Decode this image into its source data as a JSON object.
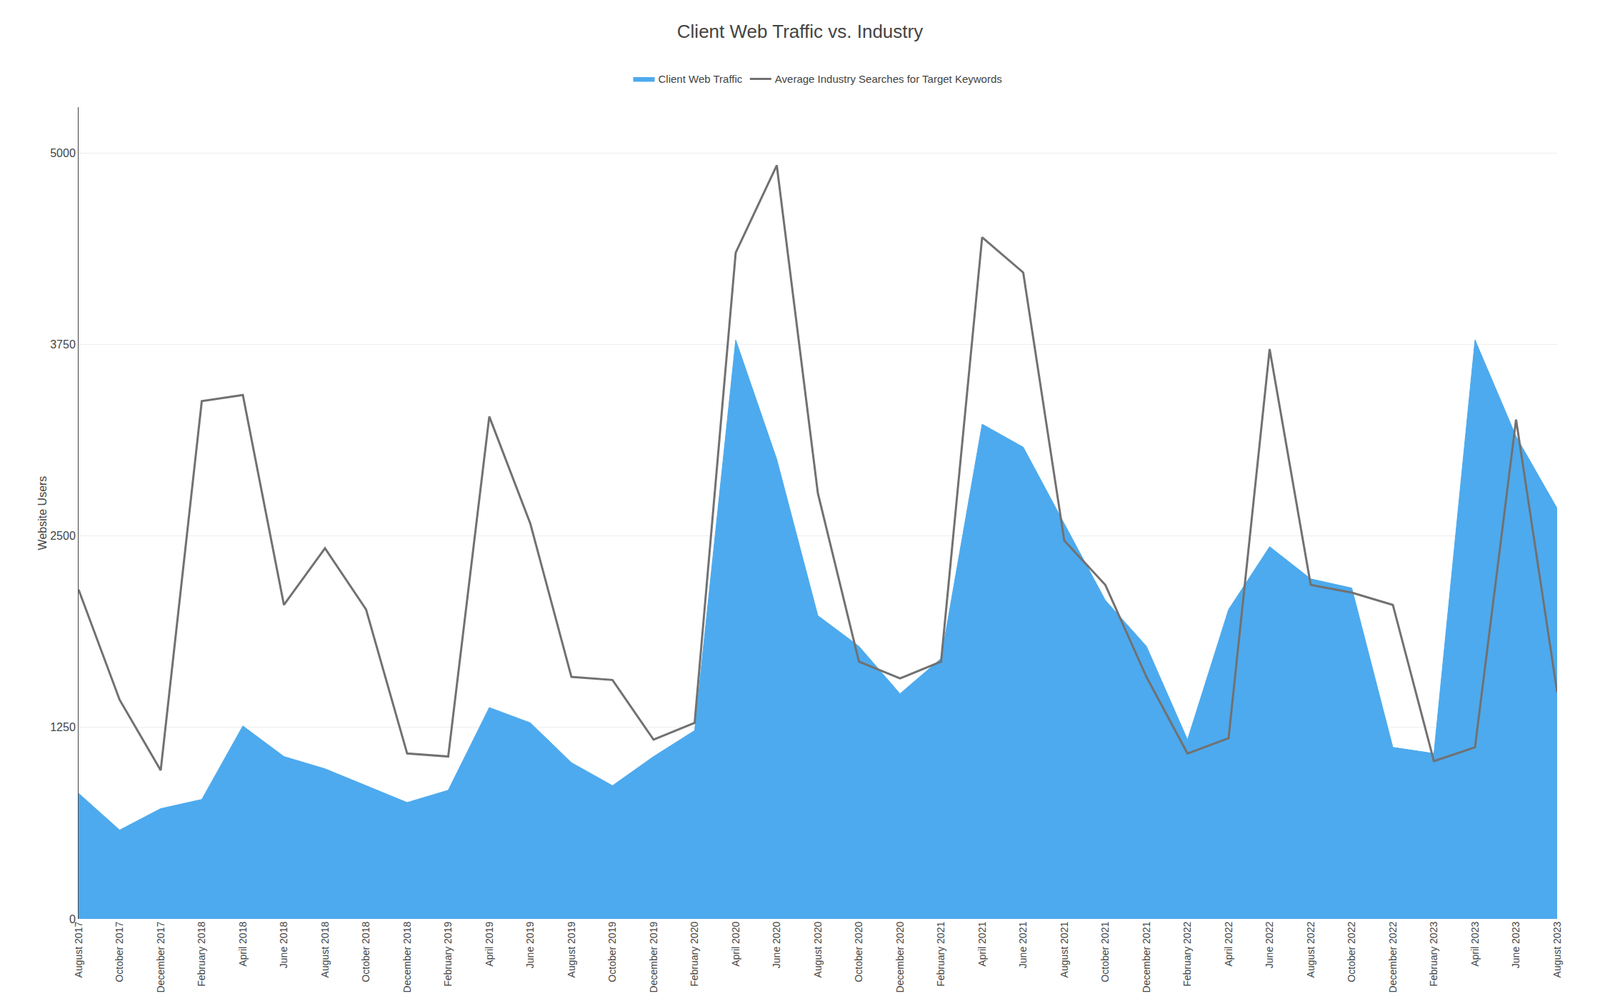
{
  "chart_data": {
    "type": "line",
    "title": "Client Web Traffic vs. Industry",
    "ylabel": "Website Users",
    "categories": [
      "August 2017",
      "October 2017",
      "December 2017",
      "February 2018",
      "April 2018",
      "June 2018",
      "August 2018",
      "October 2018",
      "December 2018",
      "February 2019",
      "April 2019",
      "June 2019",
      "August 2019",
      "October 2019",
      "December 2019",
      "February 2020",
      "April 2020",
      "June 2020",
      "August 2020",
      "October 2020",
      "December 2020",
      "February 2021",
      "April 2021",
      "June 2021",
      "August 2021",
      "October 2021",
      "December 2021",
      "February 2022",
      "April 2022",
      "June 2022",
      "August 2022",
      "October 2022",
      "December 2022",
      "February 2023",
      "April 2023",
      "June 2023",
      "August 2023"
    ],
    "series": [
      {
        "name": "Client Web Traffic",
        "type": "area",
        "color": "#4DAAEE",
        "values": [
          820,
          580,
          720,
          780,
          1260,
          1060,
          980,
          870,
          760,
          840,
          1380,
          1280,
          1020,
          870,
          1060,
          1230,
          3780,
          3000,
          1980,
          1780,
          1470,
          1700,
          3230,
          3080,
          2580,
          2080,
          1780,
          1170,
          2020,
          2430,
          2220,
          2160,
          1120,
          1080,
          3780,
          3150,
          2680
        ]
      },
      {
        "name": "Average Industry Searches for Target Keywords",
        "type": "line",
        "color": "#717171",
        "values": [
          2150,
          1430,
          970,
          3380,
          3420,
          2050,
          2420,
          2020,
          1080,
          1060,
          3280,
          2580,
          1580,
          1560,
          1170,
          1280,
          4350,
          4920,
          2780,
          1680,
          1570,
          1680,
          4450,
          4220,
          2470,
          2180,
          1580,
          1080,
          1180,
          3720,
          2180,
          2130,
          2050,
          1030,
          1120,
          3260,
          1480
        ]
      }
    ],
    "ylim": [
      0,
      5300
    ],
    "yticks": [
      0,
      1250,
      2500,
      3750,
      5000
    ],
    "grid": true,
    "legend": "top"
  }
}
